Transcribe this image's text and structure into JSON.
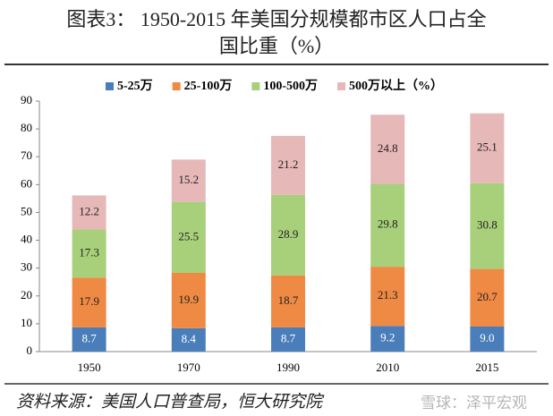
{
  "chart_data": {
    "type": "stacked-bar",
    "title": [
      "图表3：  1950-2015 年美国分规模都市区人口占全",
      "国比重（%）"
    ],
    "categories": [
      "1950",
      "1970",
      "1990",
      "2010",
      "2015"
    ],
    "series": [
      {
        "name": "5-25万",
        "color": "#4a7ebb",
        "values": [
          8.7,
          8.4,
          8.7,
          9.2,
          9.0
        ],
        "value_labels": [
          "8.7",
          "8.4",
          "8.7",
          "9.2",
          "9.0"
        ]
      },
      {
        "name": "25-100万",
        "color": "#ef8a44",
        "values": [
          17.9,
          19.9,
          18.7,
          21.3,
          20.7
        ]
      },
      {
        "name": "100-500万",
        "color": "#a8cf7a",
        "values": [
          17.3,
          25.5,
          28.9,
          29.8,
          30.8
        ]
      },
      {
        "name": "500万以上（%）",
        "color": "#e6b9b8",
        "values": [
          12.2,
          15.2,
          21.2,
          24.8,
          25.1
        ]
      }
    ],
    "ylim": [
      0,
      90
    ],
    "yticks": [
      0,
      10,
      20,
      30,
      40,
      50,
      60,
      70,
      80,
      90
    ],
    "grid": false,
    "source": "资料来源：美国人口普查局，恒大研究院",
    "watermark": "雪球：泽平宏观"
  }
}
